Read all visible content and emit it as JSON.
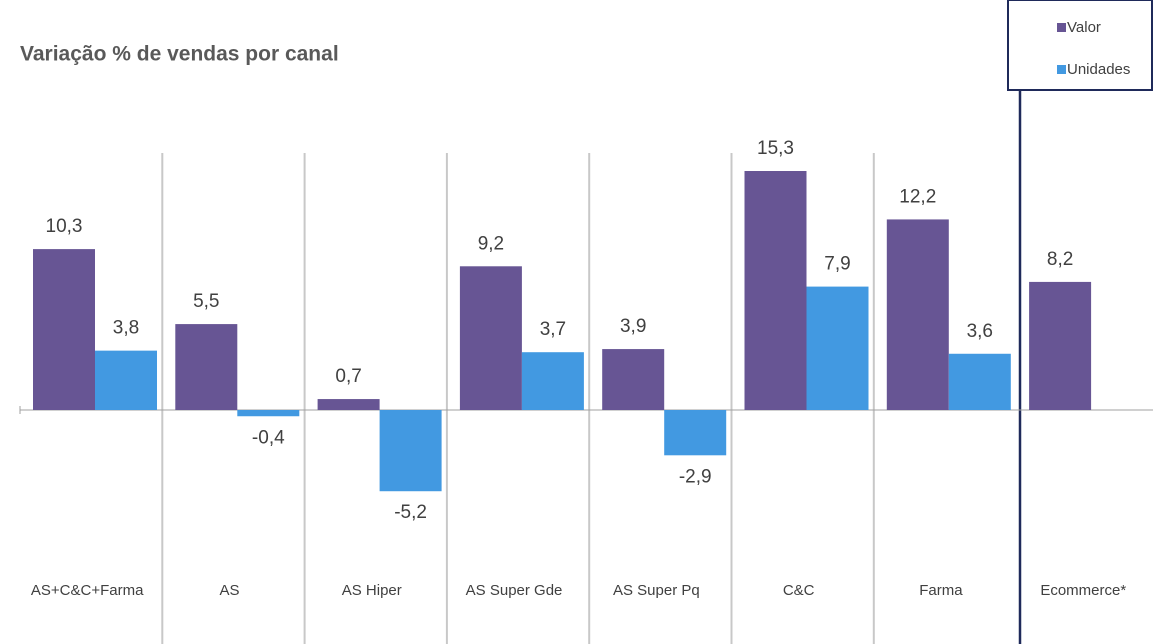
{
  "chart_data": {
    "type": "bar",
    "title": "Variação % de vendas por canal",
    "categories": [
      "AS+C&C+Farma",
      "AS",
      "AS Hiper",
      "AS Super Gde",
      "AS Super Pq",
      "C&C",
      "Farma",
      "Ecommerce*"
    ],
    "series": [
      {
        "name": "Valor",
        "color": "#675594",
        "values": [
          10.3,
          5.5,
          0.7,
          9.2,
          3.9,
          15.3,
          12.2,
          8.2
        ],
        "value_labels": [
          "10,3",
          "5,5",
          "0,7",
          "9,2",
          "3,9",
          "15,3",
          "12,2",
          "8,2"
        ]
      },
      {
        "name": "Unidades",
        "color": "#4299e1",
        "values": [
          3.8,
          -0.4,
          -5.2,
          3.7,
          -2.9,
          7.9,
          3.6,
          null
        ],
        "value_labels": [
          "3,8",
          "-0,4",
          "-5,2",
          "3,7",
          "-2,9",
          "7,9",
          "3,6",
          null
        ]
      }
    ]
  }
}
